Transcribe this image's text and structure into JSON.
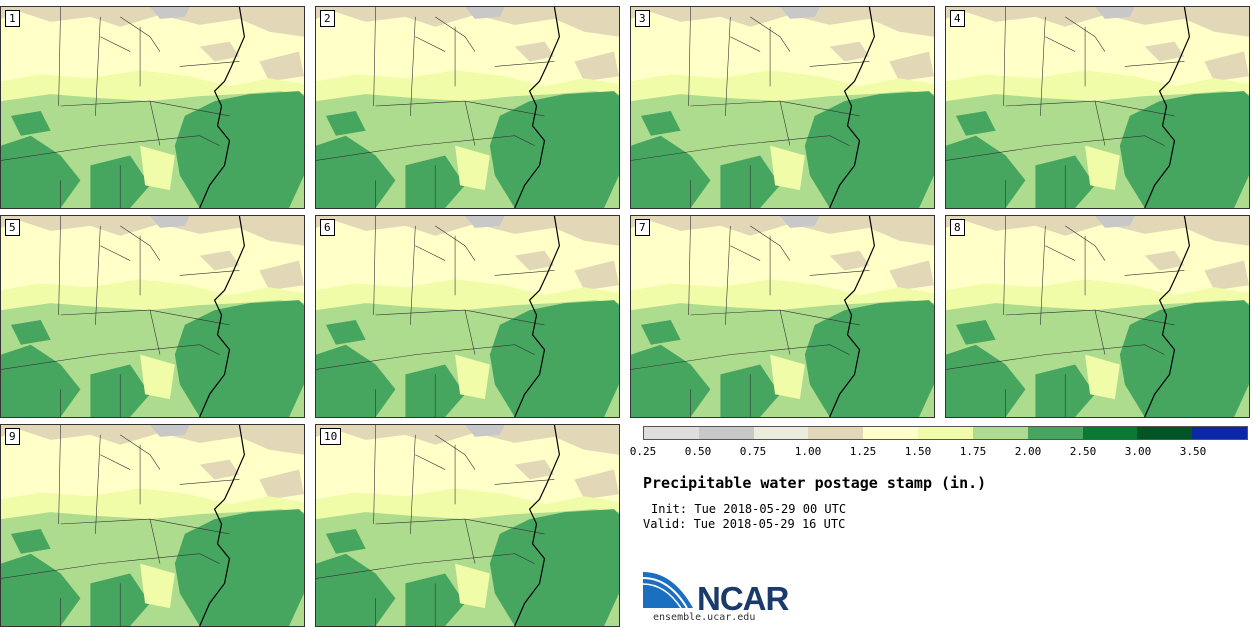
{
  "panels": [
    {
      "label": "1"
    },
    {
      "label": "2"
    },
    {
      "label": "3"
    },
    {
      "label": "4"
    },
    {
      "label": "5"
    },
    {
      "label": "6"
    },
    {
      "label": "7"
    },
    {
      "label": "8"
    },
    {
      "label": "9"
    },
    {
      "label": "10"
    }
  ],
  "legend": {
    "colors": [
      "#dedede",
      "#c8c8c8",
      "#ececdc",
      "#e2d8b8",
      "#ffffc8",
      "#f0fca8",
      "#aedc8e",
      "#46a660",
      "#0a7a32",
      "#005524",
      "#0a28a6"
    ],
    "ticks": [
      "0.25",
      "0.50",
      "0.75",
      "1.00",
      "1.25",
      "1.50",
      "1.75",
      "2.00",
      "2.50",
      "3.00",
      "3.50"
    ]
  },
  "title": "Precipitable water postage stamp (in.)",
  "init": "Init: Tue 2018-05-29 00 UTC",
  "valid": "Valid: Tue 2018-05-29 16 UTC",
  "logo": {
    "name": "NCAR",
    "url": "ensemble.ucar.edu"
  }
}
